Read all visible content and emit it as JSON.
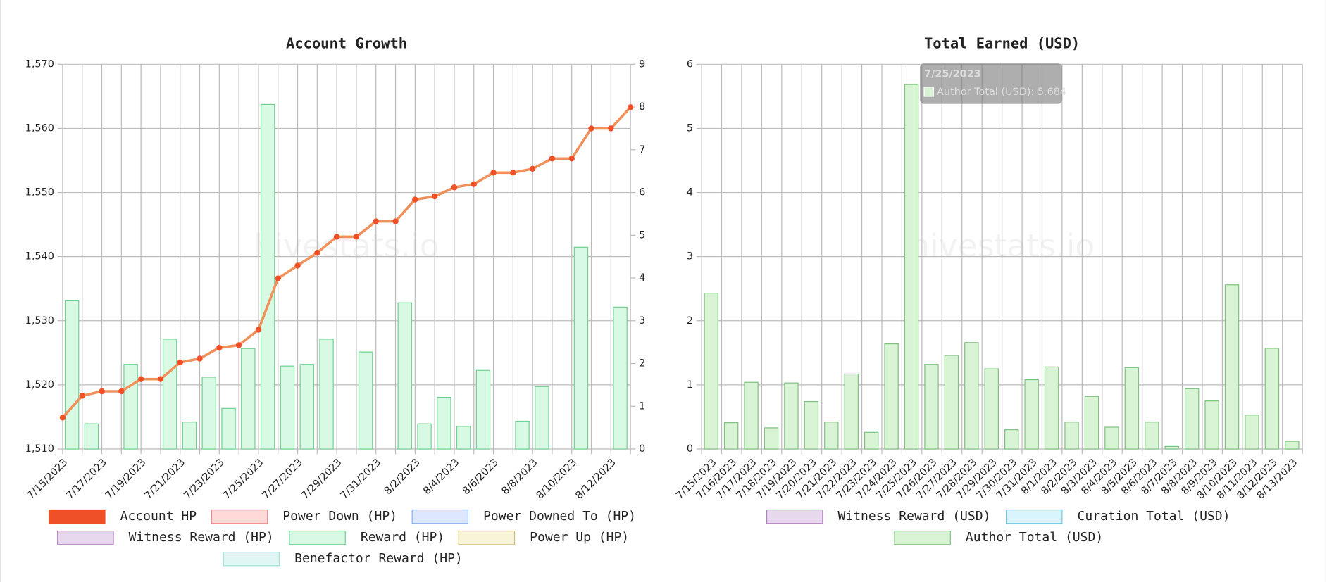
{
  "chart_data": [
    {
      "type": "line",
      "title": "Account Growth",
      "watermark": "hivestats.io",
      "categories": [
        "7/15/2023",
        null,
        "7/17/2023",
        null,
        "7/19/2023",
        null,
        "7/21/2023",
        null,
        "7/23/2023",
        null,
        "7/25/2023",
        null,
        "7/27/2023",
        null,
        "7/29/2023",
        null,
        "7/31/2023",
        null,
        "8/2/2023",
        null,
        "8/4/2023",
        null,
        "8/6/2023",
        null,
        "8/8/2023",
        null,
        "8/10/2023",
        null,
        "8/12/2023",
        null
      ],
      "series": [
        {
          "name": "Account HP",
          "color": "#f05028",
          "line_color": "#f0905a",
          "axis": "y",
          "values": [
            1514.9,
            1518.3,
            1519.0,
            1519.0,
            1520.9,
            1520.9,
            1523.5,
            1524.1,
            1525.8,
            1526.2,
            1528.6,
            1536.6,
            1538.6,
            1540.6,
            1543.1,
            1543.1,
            1545.5,
            1545.5,
            1548.9,
            1549.4,
            1550.8,
            1551.3,
            1553.1,
            1553.1,
            1553.7,
            1555.3,
            1555.3,
            1560.0,
            1560.0,
            1563.3
          ]
        },
        {
          "name": "Power Down (HP)",
          "color": "#ffd8d8",
          "border": "#f08888"
        },
        {
          "name": "Power Downed To (HP)",
          "color": "#dde8ff",
          "border": "#8ab0f0"
        },
        {
          "name": "Witness Reward (HP)",
          "color": "#e8d8ee",
          "border": "#b080c0"
        },
        {
          "name": "Reward (HP)",
          "type": "bar",
          "color": "#d8fae4",
          "border": "#70d090",
          "axis": "y2",
          "values": [
            3.48,
            0.59,
            null,
            1.98,
            null,
            2.57,
            0.63,
            1.68,
            0.95,
            2.35,
            8.06,
            1.94,
            1.98,
            2.57,
            null,
            2.27,
            null,
            3.42,
            0.59,
            1.21,
            0.53,
            1.84,
            null,
            0.65,
            1.46,
            null,
            4.72,
            null,
            3.32,
            null
          ]
        },
        {
          "name": "Power Up (HP)",
          "color": "#f8f4d8",
          "border": "#d0c080"
        },
        {
          "name": "Benefactor Reward (HP)",
          "color": "#e0f6f4",
          "border": "#a0e0d8"
        }
      ],
      "ylim": [
        1510,
        1570
      ],
      "yticks": [
        {
          "value": 1510,
          "label": "1,510"
        },
        {
          "value": 1520,
          "label": "1,520"
        },
        {
          "value": 1530,
          "label": "1,530"
        },
        {
          "value": 1540,
          "label": "1,540"
        },
        {
          "value": 1550,
          "label": "1,550"
        },
        {
          "value": 1560,
          "label": "1,560"
        },
        {
          "value": 1570,
          "label": "1,570"
        }
      ],
      "y2lim": [
        0,
        9
      ],
      "y2ticks": [
        0,
        1,
        2,
        3,
        4,
        5,
        6,
        7,
        8,
        9
      ],
      "grid": true
    },
    {
      "type": "bar",
      "title": "Total Earned (USD)",
      "watermark": "hivestats.io",
      "categories": [
        "7/15/2023",
        "7/16/2023",
        "7/17/2023",
        "7/18/2023",
        "7/19/2023",
        "7/20/2023",
        "7/21/2023",
        "7/22/2023",
        "7/23/2023",
        "7/24/2023",
        "7/25/2023",
        "7/26/2023",
        "7/27/2023",
        "7/28/2023",
        "7/29/2023",
        "7/30/2023",
        "7/31/2023",
        "8/1/2023",
        "8/2/2023",
        "8/3/2023",
        "8/4/2023",
        "8/5/2023",
        "8/6/2023",
        "8/7/2023",
        "8/8/2023",
        "8/9/2023",
        "8/10/2023",
        "8/11/2023",
        "8/12/2023",
        "8/13/2023"
      ],
      "series": [
        {
          "name": "Witness Reward (USD)",
          "color": "#e8d8ee",
          "border": "#b080c0"
        },
        {
          "name": "Curation Total (USD)",
          "color": "#d8f4fc",
          "border": "#70c8e8"
        },
        {
          "name": "Author Total (USD)",
          "type": "bar",
          "color": "#d8f4d4",
          "border": "#80c080",
          "axis": "y",
          "values": [
            2.43,
            0.41,
            1.04,
            0.33,
            1.03,
            0.74,
            0.42,
            1.17,
            0.26,
            1.64,
            5.684,
            1.32,
            1.46,
            1.66,
            1.25,
            0.3,
            1.08,
            1.28,
            0.42,
            0.82,
            0.34,
            1.27,
            0.42,
            0.04,
            0.94,
            0.75,
            2.56,
            0.53,
            1.57,
            0.12
          ]
        }
      ],
      "ylim": [
        0,
        6
      ],
      "yticks": [
        0,
        1,
        2,
        3,
        4,
        5,
        6
      ],
      "grid": true,
      "tooltip": {
        "title": "7/25/2023",
        "label": "Author Total (USD): 5.684"
      }
    }
  ]
}
